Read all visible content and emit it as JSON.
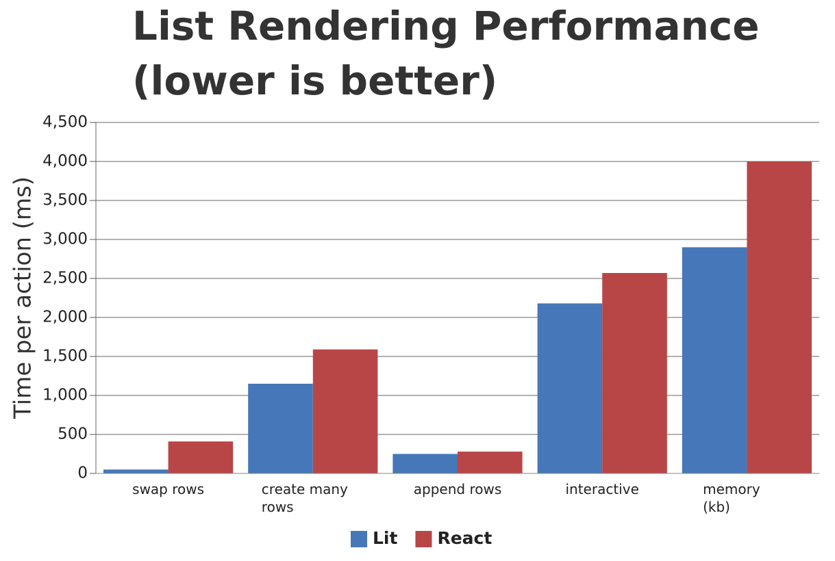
{
  "chart_data": {
    "type": "bar",
    "title": [
      "List Rendering Performance",
      "(lower is better)"
    ],
    "y_label": "Time per action (ms)",
    "categories": [
      "swap rows",
      "create many rows",
      "append rows",
      "interactive",
      "memory (kb)"
    ],
    "series": [
      {
        "name": "Lit",
        "color": "#4677b8",
        "values": [
          50,
          1150,
          250,
          2180,
          2900
        ]
      },
      {
        "name": "React",
        "color": "#b94646",
        "values": [
          410,
          1590,
          280,
          2570,
          4000
        ]
      }
    ],
    "ylim": [
      0,
      4500
    ],
    "yticks": [
      0,
      500,
      {
        "value": 1000,
        "label": "1,000"
      },
      {
        "value": 1500,
        "label": "1,500"
      },
      {
        "value": 2000,
        "label": "2,000"
      },
      {
        "value": 2500,
        "label": "2,500"
      },
      {
        "value": 3000,
        "label": "3,000"
      },
      {
        "value": 3500,
        "label": "3,500"
      },
      {
        "value": 4000,
        "label": "4,000"
      },
      {
        "value": 4500,
        "label": "4,500"
      }
    ],
    "grid": true,
    "legend": "bottom"
  }
}
